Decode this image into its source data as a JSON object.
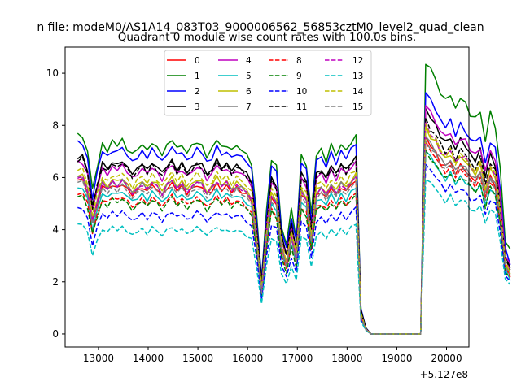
{
  "chart_data": {
    "type": "line",
    "suptitle": "n file: modeM0/AS1A14_083T03_9000006562_56853cztM0_level2_quad_clean",
    "title": "Quadrant 0 module wise count rates with 100.0s bins.",
    "xlabel": "",
    "ylabel": "",
    "x_offset_label": "+5.127e8",
    "xlim": [
      12330,
      20450
    ],
    "ylim": [
      -0.5,
      11.0
    ],
    "xticks": [
      13000,
      14000,
      15000,
      16000,
      17000,
      18000,
      19000,
      20000
    ],
    "xtick_labels": [
      "13000",
      "14000",
      "15000",
      "16000",
      "17000",
      "18000",
      "19000",
      "20000"
    ],
    "yticks": [
      0,
      2,
      4,
      6,
      8,
      10
    ],
    "ytick_labels": [
      "0",
      "2",
      "4",
      "6",
      "8",
      "10"
    ],
    "legend_position": "upper-center",
    "x_start": 12580,
    "x_step": 100,
    "series": [
      {
        "name": "0",
        "color": "#ff0000",
        "dash": "solid",
        "base": 5.9,
        "peak": 7.5
      },
      {
        "name": "1",
        "color": "#008000",
        "dash": "solid",
        "base": 7.6,
        "peak": 10.5
      },
      {
        "name": "2",
        "color": "#0000ff",
        "dash": "solid",
        "base": 7.3,
        "peak": 9.3
      },
      {
        "name": "3",
        "color": "#000000",
        "dash": "solid",
        "base": 6.8,
        "peak": 8.6
      },
      {
        "name": "4",
        "color": "#bf00bf",
        "dash": "solid",
        "base": 6.6,
        "peak": 8.8
      },
      {
        "name": "5",
        "color": "#00bfbf",
        "dash": "solid",
        "base": 5.6,
        "peak": 7.0
      },
      {
        "name": "6",
        "color": "#bfbf00",
        "dash": "solid",
        "base": 6.1,
        "peak": 7.9
      },
      {
        "name": "7",
        "color": "#808080",
        "dash": "solid",
        "base": 6.0,
        "peak": 7.6
      },
      {
        "name": "8",
        "color": "#ff0000",
        "dash": "dashed",
        "base": 5.4,
        "peak": 7.3
      },
      {
        "name": "9",
        "color": "#008000",
        "dash": "dashed",
        "base": 5.3,
        "peak": 7.0
      },
      {
        "name": "10",
        "color": "#0000ff",
        "dash": "dashed",
        "base": 4.8,
        "peak": 6.5
      },
      {
        "name": "11",
        "color": "#000000",
        "dash": "dashed",
        "base": 6.7,
        "peak": 8.2
      },
      {
        "name": "12",
        "color": "#bf00bf",
        "dash": "dashed",
        "base": 6.0,
        "peak": 8.0
      },
      {
        "name": "13",
        "color": "#00bfbf",
        "dash": "dashed",
        "base": 4.2,
        "peak": 6.0
      },
      {
        "name": "14",
        "color": "#bfbf00",
        "dash": "dashed",
        "base": 6.3,
        "peak": 8.0
      },
      {
        "name": "15",
        "color": "#808080",
        "dash": "dashed",
        "base": 5.8,
        "peak": 7.4
      }
    ],
    "profile": [
      1.0,
      1.0,
      0.92,
      0.72,
      0.85,
      0.96,
      0.93,
      0.97,
      0.95,
      0.98,
      0.94,
      0.9,
      0.93,
      0.96,
      0.92,
      0.97,
      0.94,
      0.9,
      0.95,
      0.98,
      0.93,
      0.96,
      0.91,
      0.94,
      0.97,
      0.95,
      0.9,
      0.93,
      0.98,
      0.94,
      0.96,
      0.92,
      0.95,
      0.93,
      0.9,
      0.86,
      0.6,
      0.28,
      0.62,
      0.88,
      0.84,
      0.55,
      0.45,
      0.62,
      0.48,
      0.9,
      0.86,
      0.6,
      0.9,
      0.93,
      0.88,
      0.95,
      0.9,
      0.96,
      0.92,
      0.97,
      1.0,
      0.12,
      0.03,
      0.0,
      0.0,
      0.0,
      0.0,
      0.0,
      0.0,
      0.0,
      0.0,
      0.0,
      0.0,
      0.0,
      1.0,
      0.96,
      0.93,
      0.88,
      0.85,
      0.88,
      0.82,
      0.86,
      0.84,
      0.8,
      0.78,
      0.82,
      0.7,
      0.8,
      0.76,
      0.6,
      0.35,
      0.3
    ],
    "jitter": [
      0.0,
      0.3,
      -0.2,
      0.5,
      -0.4,
      0.1,
      0.6,
      -0.3,
      0.2,
      -0.5,
      0.4,
      -0.1,
      0.3,
      -0.6,
      0.5,
      0.0,
      -0.2,
      0.4,
      -0.4,
      0.2
    ],
    "jitter_amp": 0.18
  }
}
